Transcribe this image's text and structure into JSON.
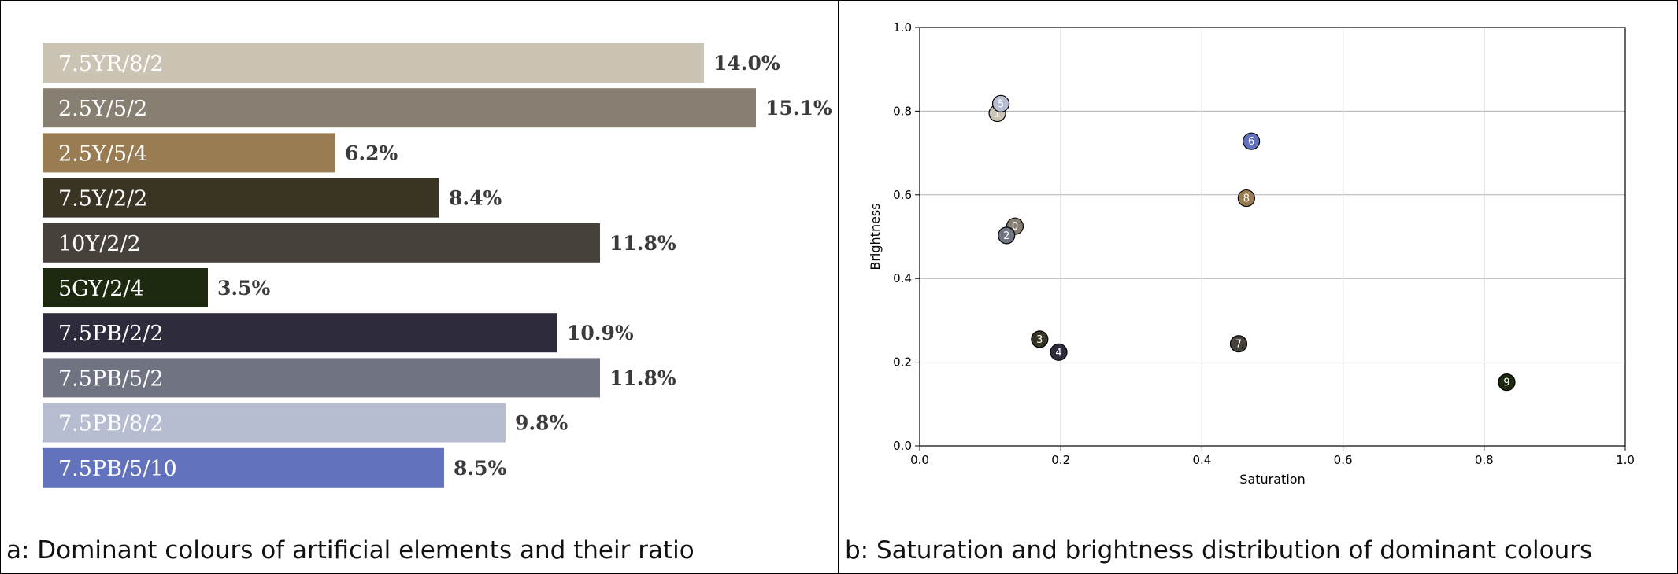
{
  "panel_a": {
    "caption": "a: Dominant colours of artificial elements and their ratio"
  },
  "panel_b": {
    "caption": "b: Saturation and brightness distribution of dominant colours"
  },
  "chart_data": [
    {
      "type": "bar",
      "orientation": "horizontal",
      "categories": [
        "7.5YR/8/2",
        "2.5Y/5/2",
        "2.5Y/5/4",
        "7.5Y/2/2",
        "10Y/2/2",
        "5GY/2/4",
        "7.5PB/2/2",
        "7.5PB/5/2",
        "7.5PB/8/2",
        "7.5PB/5/10"
      ],
      "values": [
        14.0,
        15.1,
        6.2,
        8.4,
        11.8,
        3.5,
        10.9,
        11.8,
        9.8,
        8.5
      ],
      "value_labels": [
        "14.0%",
        "15.1%",
        "6.2%",
        "8.4%",
        "11.8%",
        "3.5%",
        "10.9%",
        "11.8%",
        "9.8%",
        "8.5%"
      ],
      "colors": [
        "#cbc3b3",
        "#877f72",
        "#9a7c53",
        "#3a3424",
        "#46423b",
        "#1d2a10",
        "#2e2c3c",
        "#707482",
        "#b6bdd1",
        "#6272bc"
      ],
      "grid": false
    },
    {
      "type": "scatter",
      "xlabel": "Saturation",
      "ylabel": "Brightness",
      "xlim": [
        0.0,
        1.0
      ],
      "ylim": [
        0.0,
        1.0
      ],
      "xticks": [
        "0.0",
        "0.2",
        "0.4",
        "0.6",
        "0.8",
        "1.0"
      ],
      "yticks": [
        "0.0",
        "0.2",
        "0.4",
        "0.6",
        "0.8",
        "1.0"
      ],
      "grid": true,
      "points": [
        {
          "label": "0",
          "x": 0.135,
          "y": 0.525,
          "color": "#877f72"
        },
        {
          "label": "1",
          "x": 0.11,
          "y": 0.795,
          "color": "#cbc3b3"
        },
        {
          "label": "2",
          "x": 0.123,
          "y": 0.503,
          "color": "#707482"
        },
        {
          "label": "3",
          "x": 0.17,
          "y": 0.255,
          "color": "#3a3424"
        },
        {
          "label": "4",
          "x": 0.197,
          "y": 0.224,
          "color": "#2e2c3c"
        },
        {
          "label": "5",
          "x": 0.115,
          "y": 0.818,
          "color": "#b6bdd1"
        },
        {
          "label": "6",
          "x": 0.47,
          "y": 0.728,
          "color": "#6272bc"
        },
        {
          "label": "7",
          "x": 0.452,
          "y": 0.244,
          "color": "#46423b"
        },
        {
          "label": "8",
          "x": 0.463,
          "y": 0.592,
          "color": "#9a7c53"
        },
        {
          "label": "9",
          "x": 0.832,
          "y": 0.152,
          "color": "#1d2a10"
        }
      ]
    }
  ]
}
